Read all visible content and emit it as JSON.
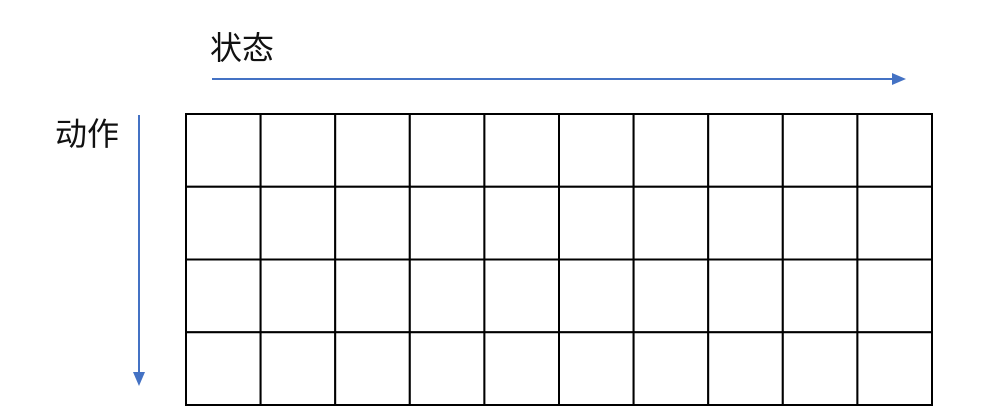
{
  "labels": {
    "horizontal_axis": "状态",
    "vertical_axis": "动作"
  },
  "grid": {
    "rows": 4,
    "columns": 10
  },
  "colors": {
    "arrow": "#4472c4",
    "grid_line": "#000000"
  }
}
